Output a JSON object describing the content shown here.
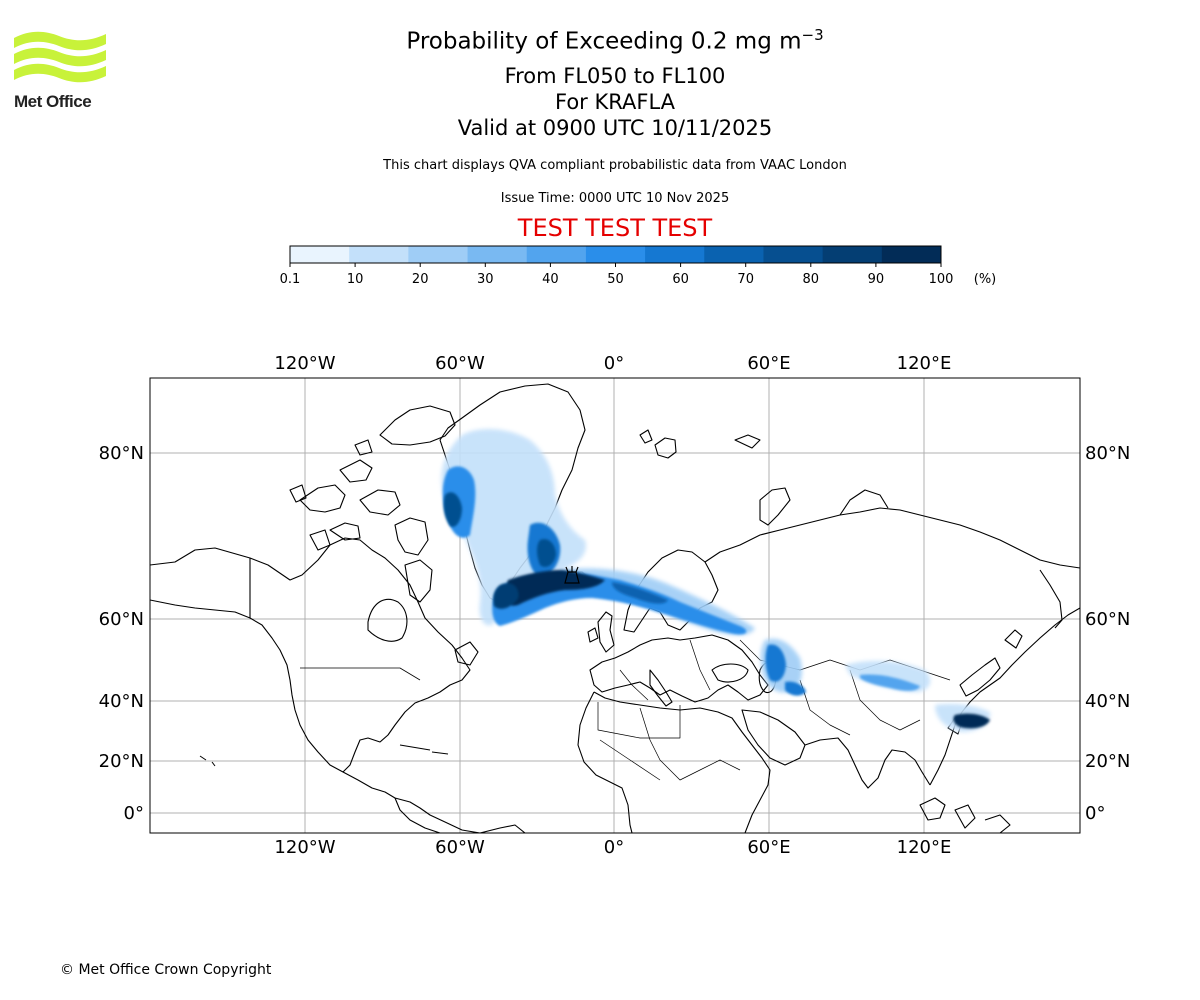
{
  "logo": {
    "text": "Met Office"
  },
  "header": {
    "title_main": "Probability of Exceeding 0.2 mg m",
    "title_exp": "−3",
    "levels": "From FL050 to FL100",
    "volcano": "For KRAFLA",
    "valid": "Valid at 0900 UTC 10/11/2025",
    "note": "This chart displays QVA compliant probabilistic data from VAAC London",
    "issue": "Issue Time: 0000 UTC 10 Nov 2025",
    "test_banner": "TEST TEST TEST"
  },
  "colorbar": {
    "unit_label": "(%)",
    "ticks": [
      "0.1",
      "10",
      "20",
      "30",
      "40",
      "50",
      "60",
      "70",
      "80",
      "90",
      "100"
    ],
    "colors": [
      "#e9f4fe",
      "#c3e0fa",
      "#9fcdf6",
      "#79b9f2",
      "#52a4ee",
      "#2a8eea",
      "#1578d2",
      "#0a62b0",
      "#064f90",
      "#043e73",
      "#022c57"
    ]
  },
  "map": {
    "lon_labels": [
      "120°W",
      "60°W",
      "0°",
      "60°E",
      "120°E"
    ],
    "lat_labels": [
      "80°N",
      "60°N",
      "40°N",
      "20°N",
      "0°"
    ],
    "volcano_marker": "KRAFLA"
  },
  "footer": {
    "copyright": "© Met Office Crown Copyright"
  }
}
